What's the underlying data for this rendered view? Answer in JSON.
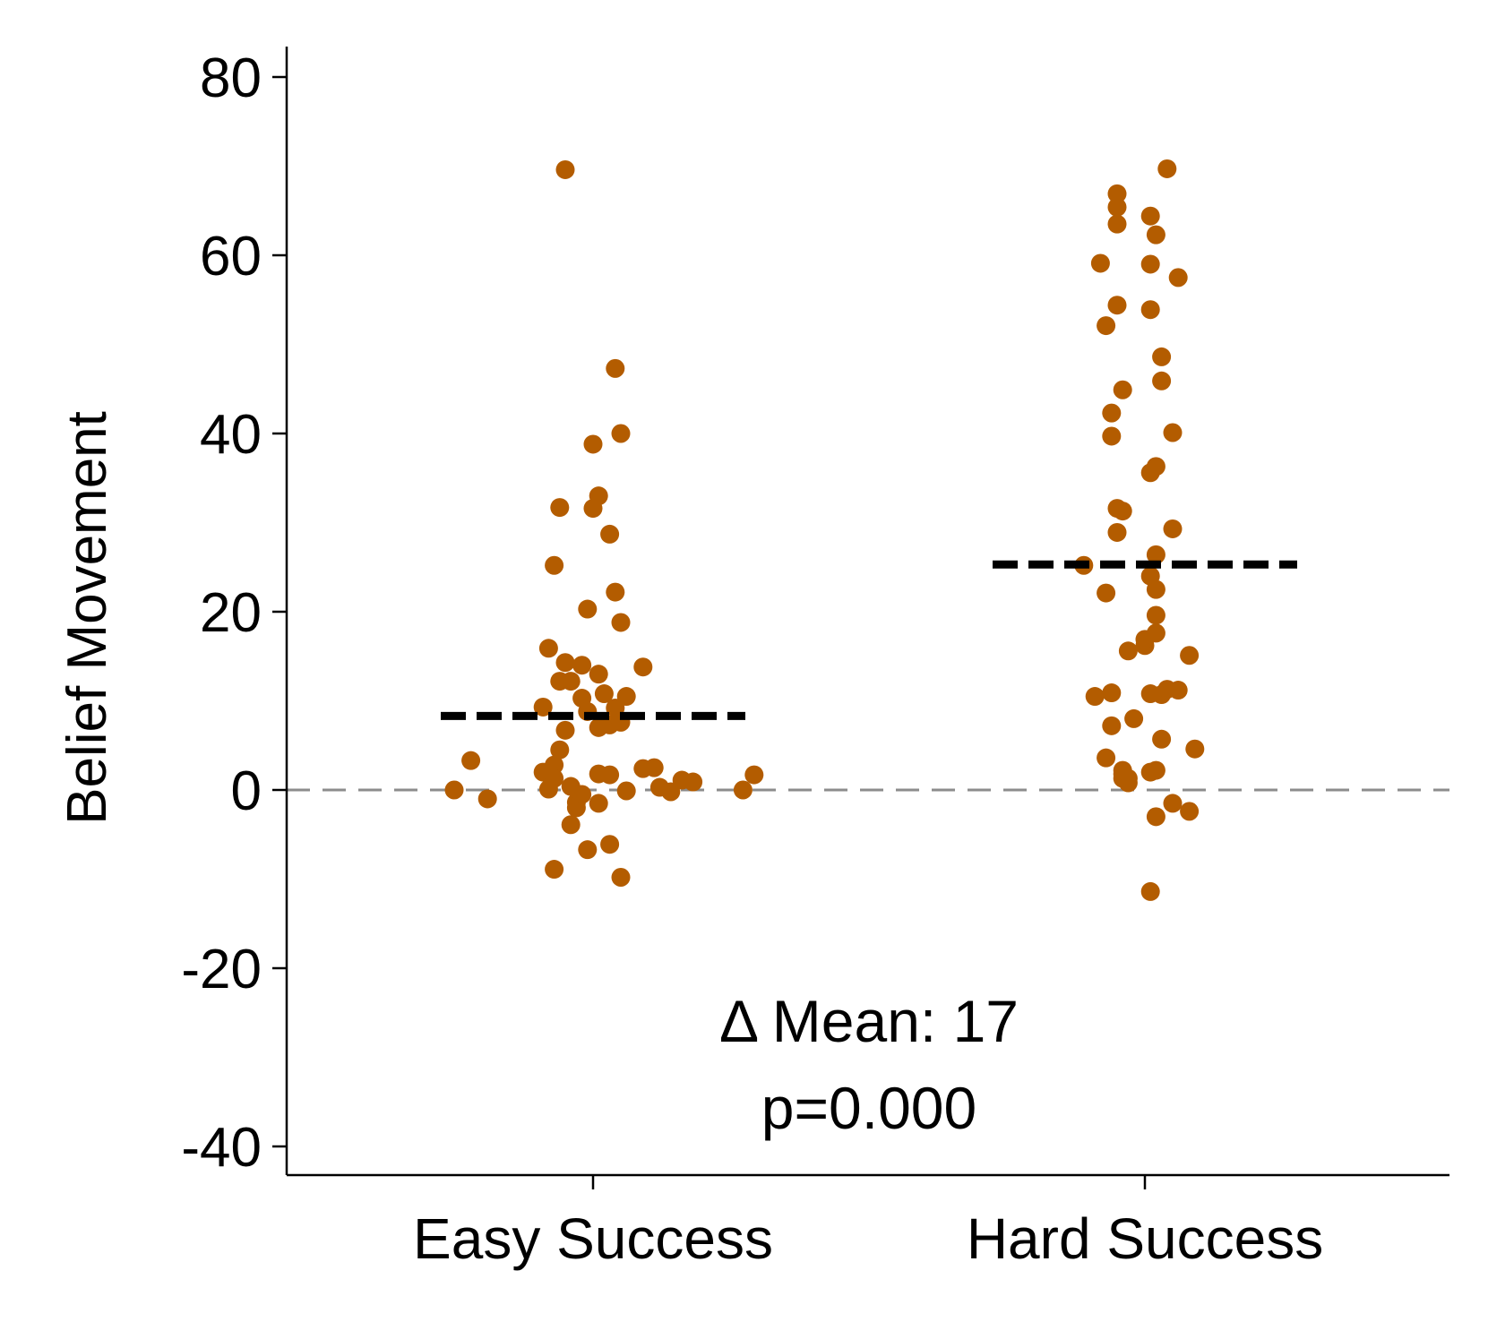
{
  "chart_data": {
    "type": "scatter",
    "ylabel": "Belief Movement",
    "categories": [
      "Easy Success",
      "Hard Success"
    ],
    "yticks": [
      80,
      60,
      40,
      20,
      0,
      -20,
      -40
    ],
    "ylim": [
      -40,
      80
    ],
    "grid": false,
    "reference_line": 0,
    "series": [
      {
        "category": "Easy Success",
        "mean": 8.3,
        "points": [
          {
            "x": -0.25,
            "y": 0
          },
          {
            "x": -0.22,
            "y": 3.3
          },
          {
            "x": -0.19,
            "y": -1.0
          },
          {
            "x": -0.09,
            "y": 9.3
          },
          {
            "x": -0.09,
            "y": 2.0
          },
          {
            "x": -0.08,
            "y": 0.1
          },
          {
            "x": -0.08,
            "y": 15.9
          },
          {
            "x": -0.07,
            "y": 2.8
          },
          {
            "x": -0.07,
            "y": 1.3
          },
          {
            "x": -0.07,
            "y": -8.9
          },
          {
            "x": -0.07,
            "y": 25.2
          },
          {
            "x": -0.06,
            "y": 12.2
          },
          {
            "x": -0.06,
            "y": 4.5
          },
          {
            "x": -0.06,
            "y": 31.7
          },
          {
            "x": -0.05,
            "y": 6.7
          },
          {
            "x": -0.05,
            "y": 69.6
          },
          {
            "x": -0.05,
            "y": 14.3
          },
          {
            "x": -0.04,
            "y": -3.9
          },
          {
            "x": -0.04,
            "y": 12.2
          },
          {
            "x": -0.04,
            "y": 0.4
          },
          {
            "x": -0.03,
            "y": -2.0
          },
          {
            "x": -0.03,
            "y": -1.4
          },
          {
            "x": -0.02,
            "y": -0.5
          },
          {
            "x": -0.02,
            "y": 10.3
          },
          {
            "x": -0.02,
            "y": 14.0
          },
          {
            "x": -0.01,
            "y": -6.7
          },
          {
            "x": -0.01,
            "y": 20.3
          },
          {
            "x": -0.01,
            "y": 8.8
          },
          {
            "x": 0.0,
            "y": 31.6
          },
          {
            "x": 0.0,
            "y": 38.8
          },
          {
            "x": 0.01,
            "y": 33.0
          },
          {
            "x": 0.01,
            "y": 7.0
          },
          {
            "x": 0.01,
            "y": 13.0
          },
          {
            "x": 0.01,
            "y": 1.8
          },
          {
            "x": 0.01,
            "y": -1.5
          },
          {
            "x": 0.02,
            "y": 10.8
          },
          {
            "x": 0.03,
            "y": 7.3
          },
          {
            "x": 0.03,
            "y": 1.7
          },
          {
            "x": 0.03,
            "y": 28.7
          },
          {
            "x": 0.03,
            "y": -6.1
          },
          {
            "x": 0.04,
            "y": 47.3
          },
          {
            "x": 0.04,
            "y": 22.2
          },
          {
            "x": 0.04,
            "y": 9.2
          },
          {
            "x": 0.05,
            "y": 18.8
          },
          {
            "x": 0.05,
            "y": -9.8
          },
          {
            "x": 0.05,
            "y": 40.0
          },
          {
            "x": 0.05,
            "y": 7.6
          },
          {
            "x": 0.06,
            "y": 10.5
          },
          {
            "x": 0.06,
            "y": -0.1
          },
          {
            "x": 0.09,
            "y": 13.8
          },
          {
            "x": 0.09,
            "y": 2.4
          },
          {
            "x": 0.11,
            "y": 2.5
          },
          {
            "x": 0.12,
            "y": 0.3
          },
          {
            "x": 0.14,
            "y": -0.2
          },
          {
            "x": 0.16,
            "y": 1.1
          },
          {
            "x": 0.18,
            "y": 0.9
          },
          {
            "x": 0.27,
            "y": 0
          },
          {
            "x": 0.29,
            "y": 1.7
          }
        ]
      },
      {
        "category": "Hard Success",
        "mean": 25.3,
        "points": [
          {
            "x": -0.11,
            "y": 25.2
          },
          {
            "x": -0.09,
            "y": 10.5
          },
          {
            "x": -0.08,
            "y": 59.1
          },
          {
            "x": -0.07,
            "y": 22.1
          },
          {
            "x": -0.07,
            "y": 3.6
          },
          {
            "x": -0.07,
            "y": 52.1
          },
          {
            "x": -0.06,
            "y": 42.3
          },
          {
            "x": -0.06,
            "y": 39.7
          },
          {
            "x": -0.06,
            "y": 10.9
          },
          {
            "x": -0.06,
            "y": 7.2
          },
          {
            "x": -0.05,
            "y": 31.6
          },
          {
            "x": -0.05,
            "y": 28.9
          },
          {
            "x": -0.05,
            "y": 54.4
          },
          {
            "x": -0.05,
            "y": 63.5
          },
          {
            "x": -0.05,
            "y": 65.4
          },
          {
            "x": -0.05,
            "y": 66.9
          },
          {
            "x": -0.04,
            "y": 31.3
          },
          {
            "x": -0.04,
            "y": 1.8
          },
          {
            "x": -0.04,
            "y": 2.2
          },
          {
            "x": -0.04,
            "y": 1.3
          },
          {
            "x": -0.04,
            "y": 44.9
          },
          {
            "x": -0.03,
            "y": 0.8
          },
          {
            "x": -0.03,
            "y": 15.6
          },
          {
            "x": -0.03,
            "y": 1.3
          },
          {
            "x": -0.02,
            "y": 8.0
          },
          {
            "x": 0.0,
            "y": 16.2
          },
          {
            "x": 0.0,
            "y": 16.9
          },
          {
            "x": 0.01,
            "y": 35.6
          },
          {
            "x": 0.01,
            "y": 59.0
          },
          {
            "x": 0.01,
            "y": 10.8
          },
          {
            "x": 0.01,
            "y": 2.0
          },
          {
            "x": 0.01,
            "y": -11.4
          },
          {
            "x": 0.01,
            "y": 24.0
          },
          {
            "x": 0.01,
            "y": 53.9
          },
          {
            "x": 0.01,
            "y": 64.4
          },
          {
            "x": 0.02,
            "y": 26.4
          },
          {
            "x": 0.02,
            "y": 17.6
          },
          {
            "x": 0.02,
            "y": 2.2
          },
          {
            "x": 0.02,
            "y": -3.0
          },
          {
            "x": 0.02,
            "y": 22.5
          },
          {
            "x": 0.02,
            "y": 62.3
          },
          {
            "x": 0.02,
            "y": 19.6
          },
          {
            "x": 0.02,
            "y": 36.3
          },
          {
            "x": 0.03,
            "y": 10.7
          },
          {
            "x": 0.03,
            "y": 48.6
          },
          {
            "x": 0.03,
            "y": 5.7
          },
          {
            "x": 0.03,
            "y": 45.9
          },
          {
            "x": 0.04,
            "y": 69.7
          },
          {
            "x": 0.04,
            "y": 11.3
          },
          {
            "x": 0.05,
            "y": 40.1
          },
          {
            "x": 0.05,
            "y": -1.5
          },
          {
            "x": 0.05,
            "y": 29.3
          },
          {
            "x": 0.06,
            "y": 11.2
          },
          {
            "x": 0.06,
            "y": 57.5
          },
          {
            "x": 0.08,
            "y": 15.1
          },
          {
            "x": 0.08,
            "y": -2.4
          },
          {
            "x": 0.09,
            "y": 4.6
          }
        ]
      }
    ],
    "annotations": [
      "Δ Mean: 17",
      "p=0.000"
    ],
    "colors": {
      "points": "#b35c00",
      "mean_line": "#000000",
      "reference_line": "#8c8c8c",
      "axis": "#000000"
    }
  }
}
